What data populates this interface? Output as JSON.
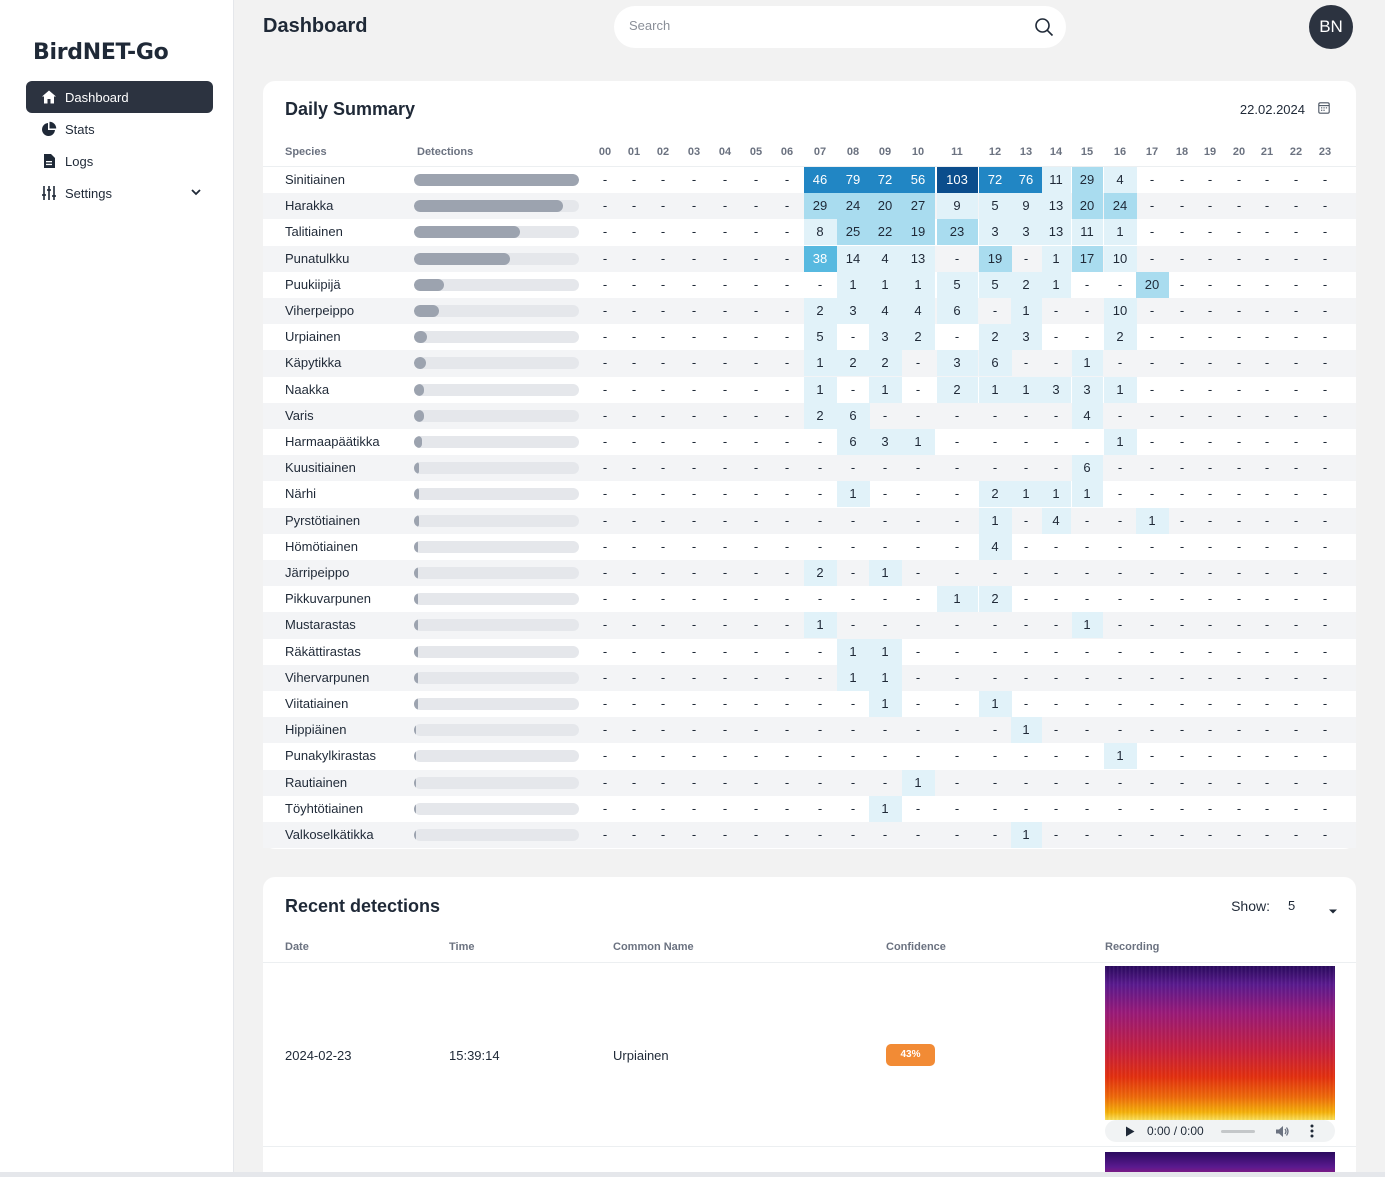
{
  "app": {
    "brand": "BirdNET-Go",
    "page_title": "Dashboard"
  },
  "sidebar": {
    "items": [
      {
        "label": "Dashboard",
        "icon": "home-icon",
        "active": true
      },
      {
        "label": "Stats",
        "icon": "pie-chart-icon",
        "active": false
      },
      {
        "label": "Logs",
        "icon": "document-icon",
        "active": false
      },
      {
        "label": "Settings",
        "icon": "sliders-icon",
        "active": false,
        "expandable": true
      }
    ]
  },
  "search": {
    "placeholder": "Search"
  },
  "user": {
    "initials": "BN"
  },
  "daily_summary": {
    "title": "Daily Summary",
    "date": "22.02.2024",
    "columns": {
      "species": "Species",
      "detections": "Detections"
    },
    "hours": [
      "00",
      "01",
      "02",
      "03",
      "04",
      "05",
      "06",
      "07",
      "08",
      "09",
      "10",
      "11",
      "12",
      "13",
      "14",
      "15",
      "16",
      "17",
      "18",
      "19",
      "20",
      "21",
      "22",
      "23"
    ],
    "rows": [
      {
        "species": "Sinitiainen",
        "total_fraction": 1.0,
        "counts": [
          "-",
          "-",
          "-",
          "-",
          "-",
          "-",
          "-",
          "46",
          "79",
          "72",
          "56",
          "103",
          "72",
          "76",
          "11",
          "29",
          "4",
          "-",
          "-",
          "-",
          "-",
          "-",
          "-",
          "-"
        ]
      },
      {
        "species": "Harakka",
        "total_fraction": 0.9,
        "counts": [
          "-",
          "-",
          "-",
          "-",
          "-",
          "-",
          "-",
          "29",
          "24",
          "20",
          "27",
          "9",
          "5",
          "9",
          "13",
          "20",
          "24",
          "-",
          "-",
          "-",
          "-",
          "-",
          "-",
          "-"
        ]
      },
      {
        "species": "Talitiainen",
        "total_fraction": 0.64,
        "counts": [
          "-",
          "-",
          "-",
          "-",
          "-",
          "-",
          "-",
          "8",
          "25",
          "22",
          "19",
          "23",
          "3",
          "3",
          "13",
          "11",
          "1",
          "-",
          "-",
          "-",
          "-",
          "-",
          "-",
          "-"
        ]
      },
      {
        "species": "Punatulkku",
        "total_fraction": 0.58,
        "counts": [
          "-",
          "-",
          "-",
          "-",
          "-",
          "-",
          "-",
          "38",
          "14",
          "4",
          "13",
          "-",
          "19",
          "-",
          "1",
          "17",
          "10",
          "-",
          "-",
          "-",
          "-",
          "-",
          "-",
          "-"
        ]
      },
      {
        "species": "Puukiipijä",
        "total_fraction": 0.18,
        "counts": [
          "-",
          "-",
          "-",
          "-",
          "-",
          "-",
          "-",
          "-",
          "1",
          "1",
          "1",
          "5",
          "5",
          "2",
          "1",
          "-",
          "-",
          "20",
          "-",
          "-",
          "-",
          "-",
          "-",
          "-"
        ]
      },
      {
        "species": "Viherpeippo",
        "total_fraction": 0.15,
        "counts": [
          "-",
          "-",
          "-",
          "-",
          "-",
          "-",
          "-",
          "2",
          "3",
          "4",
          "4",
          "6",
          "-",
          "1",
          "-",
          "-",
          "10",
          "-",
          "-",
          "-",
          "-",
          "-",
          "-",
          "-"
        ]
      },
      {
        "species": "Urpiainen",
        "total_fraction": 0.08,
        "counts": [
          "-",
          "-",
          "-",
          "-",
          "-",
          "-",
          "-",
          "5",
          "-",
          "3",
          "2",
          "-",
          "2",
          "3",
          "-",
          "-",
          "2",
          "-",
          "-",
          "-",
          "-",
          "-",
          "-",
          "-"
        ]
      },
      {
        "species": "Käpytikka",
        "total_fraction": 0.07,
        "counts": [
          "-",
          "-",
          "-",
          "-",
          "-",
          "-",
          "-",
          "1",
          "2",
          "2",
          "-",
          "3",
          "6",
          "-",
          "-",
          "1",
          "-",
          "-",
          "-",
          "-",
          "-",
          "-",
          "-",
          "-"
        ]
      },
      {
        "species": "Naakka",
        "total_fraction": 0.06,
        "counts": [
          "-",
          "-",
          "-",
          "-",
          "-",
          "-",
          "-",
          "1",
          "-",
          "1",
          "-",
          "2",
          "1",
          "1",
          "3",
          "3",
          "1",
          "-",
          "-",
          "-",
          "-",
          "-",
          "-",
          "-"
        ]
      },
      {
        "species": "Varis",
        "total_fraction": 0.06,
        "counts": [
          "-",
          "-",
          "-",
          "-",
          "-",
          "-",
          "-",
          "2",
          "6",
          "-",
          "-",
          "-",
          "-",
          "-",
          "-",
          "4",
          "-",
          "-",
          "-",
          "-",
          "-",
          "-",
          "-",
          "-"
        ]
      },
      {
        "species": "Harmaapäätikka",
        "total_fraction": 0.05,
        "counts": [
          "-",
          "-",
          "-",
          "-",
          "-",
          "-",
          "-",
          "-",
          "6",
          "3",
          "1",
          "-",
          "-",
          "-",
          "-",
          "-",
          "1",
          "-",
          "-",
          "-",
          "-",
          "-",
          "-",
          "-"
        ]
      },
      {
        "species": "Kuusitiainen",
        "total_fraction": 0.03,
        "counts": [
          "-",
          "-",
          "-",
          "-",
          "-",
          "-",
          "-",
          "-",
          "-",
          "-",
          "-",
          "-",
          "-",
          "-",
          "-",
          "6",
          "-",
          "-",
          "-",
          "-",
          "-",
          "-",
          "-",
          "-"
        ]
      },
      {
        "species": "Närhi",
        "total_fraction": 0.03,
        "counts": [
          "-",
          "-",
          "-",
          "-",
          "-",
          "-",
          "-",
          "-",
          "1",
          "-",
          "-",
          "-",
          "2",
          "1",
          "1",
          "1",
          "-",
          "-",
          "-",
          "-",
          "-",
          "-",
          "-",
          "-"
        ]
      },
      {
        "species": "Pyrstötiainen",
        "total_fraction": 0.03,
        "counts": [
          "-",
          "-",
          "-",
          "-",
          "-",
          "-",
          "-",
          "-",
          "-",
          "-",
          "-",
          "-",
          "1",
          "-",
          "4",
          "-",
          "-",
          "1",
          "-",
          "-",
          "-",
          "-",
          "-",
          "-"
        ]
      },
      {
        "species": "Hömötiainen",
        "total_fraction": 0.02,
        "counts": [
          "-",
          "-",
          "-",
          "-",
          "-",
          "-",
          "-",
          "-",
          "-",
          "-",
          "-",
          "-",
          "4",
          "-",
          "-",
          "-",
          "-",
          "-",
          "-",
          "-",
          "-",
          "-",
          "-",
          "-"
        ]
      },
      {
        "species": "Järripeippo",
        "total_fraction": 0.01,
        "counts": [
          "-",
          "-",
          "-",
          "-",
          "-",
          "-",
          "-",
          "2",
          "-",
          "1",
          "-",
          "-",
          "-",
          "-",
          "-",
          "-",
          "-",
          "-",
          "-",
          "-",
          "-",
          "-",
          "-",
          "-"
        ]
      },
      {
        "species": "Pikkuvarpunen",
        "total_fraction": 0.01,
        "counts": [
          "-",
          "-",
          "-",
          "-",
          "-",
          "-",
          "-",
          "-",
          "-",
          "-",
          "-",
          "1",
          "2",
          "-",
          "-",
          "-",
          "-",
          "-",
          "-",
          "-",
          "-",
          "-",
          "-",
          "-"
        ]
      },
      {
        "species": "Mustarastas",
        "total_fraction": 0.01,
        "counts": [
          "-",
          "-",
          "-",
          "-",
          "-",
          "-",
          "-",
          "1",
          "-",
          "-",
          "-",
          "-",
          "-",
          "-",
          "-",
          "1",
          "-",
          "-",
          "-",
          "-",
          "-",
          "-",
          "-",
          "-"
        ]
      },
      {
        "species": "Räkättirastas",
        "total_fraction": 0.01,
        "counts": [
          "-",
          "-",
          "-",
          "-",
          "-",
          "-",
          "-",
          "-",
          "1",
          "1",
          "-",
          "-",
          "-",
          "-",
          "-",
          "-",
          "-",
          "-",
          "-",
          "-",
          "-",
          "-",
          "-",
          "-"
        ]
      },
      {
        "species": "Vihervarpunen",
        "total_fraction": 0.01,
        "counts": [
          "-",
          "-",
          "-",
          "-",
          "-",
          "-",
          "-",
          "-",
          "1",
          "1",
          "-",
          "-",
          "-",
          "-",
          "-",
          "-",
          "-",
          "-",
          "-",
          "-",
          "-",
          "-",
          "-",
          "-"
        ]
      },
      {
        "species": "Viitatiainen",
        "total_fraction": 0.01,
        "counts": [
          "-",
          "-",
          "-",
          "-",
          "-",
          "-",
          "-",
          "-",
          "-",
          "1",
          "-",
          "-",
          "1",
          "-",
          "-",
          "-",
          "-",
          "-",
          "-",
          "-",
          "-",
          "-",
          "-",
          "-"
        ]
      },
      {
        "species": "Hippiäinen",
        "total_fraction": 0.0,
        "counts": [
          "-",
          "-",
          "-",
          "-",
          "-",
          "-",
          "-",
          "-",
          "-",
          "-",
          "-",
          "-",
          "-",
          "1",
          "-",
          "-",
          "-",
          "-",
          "-",
          "-",
          "-",
          "-",
          "-",
          "-"
        ]
      },
      {
        "species": "Punakylkirastas",
        "total_fraction": 0.0,
        "counts": [
          "-",
          "-",
          "-",
          "-",
          "-",
          "-",
          "-",
          "-",
          "-",
          "-",
          "-",
          "-",
          "-",
          "-",
          "-",
          "-",
          "1",
          "-",
          "-",
          "-",
          "-",
          "-",
          "-",
          "-"
        ]
      },
      {
        "species": "Rautiainen",
        "total_fraction": 0.0,
        "counts": [
          "-",
          "-",
          "-",
          "-",
          "-",
          "-",
          "-",
          "-",
          "-",
          "-",
          "1",
          "-",
          "-",
          "-",
          "-",
          "-",
          "-",
          "-",
          "-",
          "-",
          "-",
          "-",
          "-",
          "-"
        ]
      },
      {
        "species": "Töyhtötiainen",
        "total_fraction": 0.0,
        "counts": [
          "-",
          "-",
          "-",
          "-",
          "-",
          "-",
          "-",
          "-",
          "-",
          "1",
          "-",
          "-",
          "-",
          "-",
          "-",
          "-",
          "-",
          "-",
          "-",
          "-",
          "-",
          "-",
          "-",
          "-"
        ]
      },
      {
        "species": "Valkoselkätikka",
        "total_fraction": 0.0,
        "counts": [
          "-",
          "-",
          "-",
          "-",
          "-",
          "-",
          "-",
          "-",
          "-",
          "-",
          "-",
          "-",
          "-",
          "1",
          "-",
          "-",
          "-",
          "-",
          "-",
          "-",
          "-",
          "-",
          "-",
          "-"
        ]
      }
    ],
    "heat_colors": [
      "#e1f2f9",
      "#a9dcef",
      "#57b9e0",
      "#2186c4",
      "#0b4d8c"
    ]
  },
  "recent": {
    "title": "Recent detections",
    "show_label": "Show:",
    "show_value": "5",
    "columns": [
      "Date",
      "Time",
      "Common Name",
      "Confidence",
      "Recording"
    ],
    "items": [
      {
        "date": "2024-02-23",
        "time": "15:39:14",
        "common_name": "Urpiainen",
        "confidence": "43%",
        "confidence_color": "#f28b35",
        "player_time": "0:00 / 0:00"
      }
    ]
  }
}
